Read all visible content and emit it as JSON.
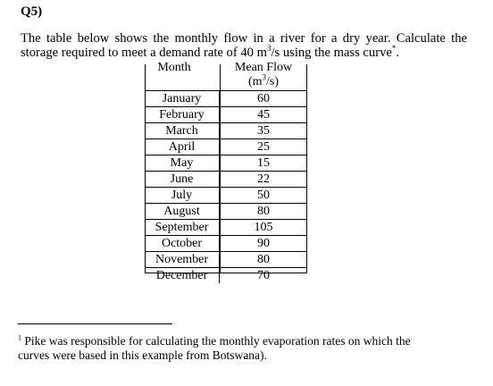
{
  "question": {
    "number": "Q5)"
  },
  "paragraph": {
    "line1": "The table below shows the monthly flow in a river for a dry year. Calculate the",
    "line2_pre": "storage required to meet a demand rate of 40 m",
    "line2_sup": "3",
    "line2_post": "/s using the mass curve",
    "line2_mark": "*",
    "line2_end": "."
  },
  "table": {
    "headers": {
      "month": "Month",
      "flow_line1": "Mean Flow",
      "flow_line2_pre": "(m",
      "flow_line2_sup": "3",
      "flow_line2_post": "/s)"
    },
    "rows": [
      {
        "month": "January",
        "flow": "60"
      },
      {
        "month": "February",
        "flow": "45"
      },
      {
        "month": "March",
        "flow": "35"
      },
      {
        "month": "April",
        "flow": "25"
      },
      {
        "month": "May",
        "flow": "15"
      },
      {
        "month": "June",
        "flow": "22"
      },
      {
        "month": "July",
        "flow": "50"
      },
      {
        "month": "August",
        "flow": "80"
      },
      {
        "month": "September",
        "flow": "105"
      },
      {
        "month": "October",
        "flow": "90"
      },
      {
        "month": "November",
        "flow": "80"
      },
      {
        "month": "December",
        "flow": "70"
      }
    ]
  },
  "footnote": {
    "mark": "1",
    "line1": "Pike was responsible for calculating the monthly evaporation rates on which the",
    "line2": "curves were based in this example from Botswana)."
  }
}
